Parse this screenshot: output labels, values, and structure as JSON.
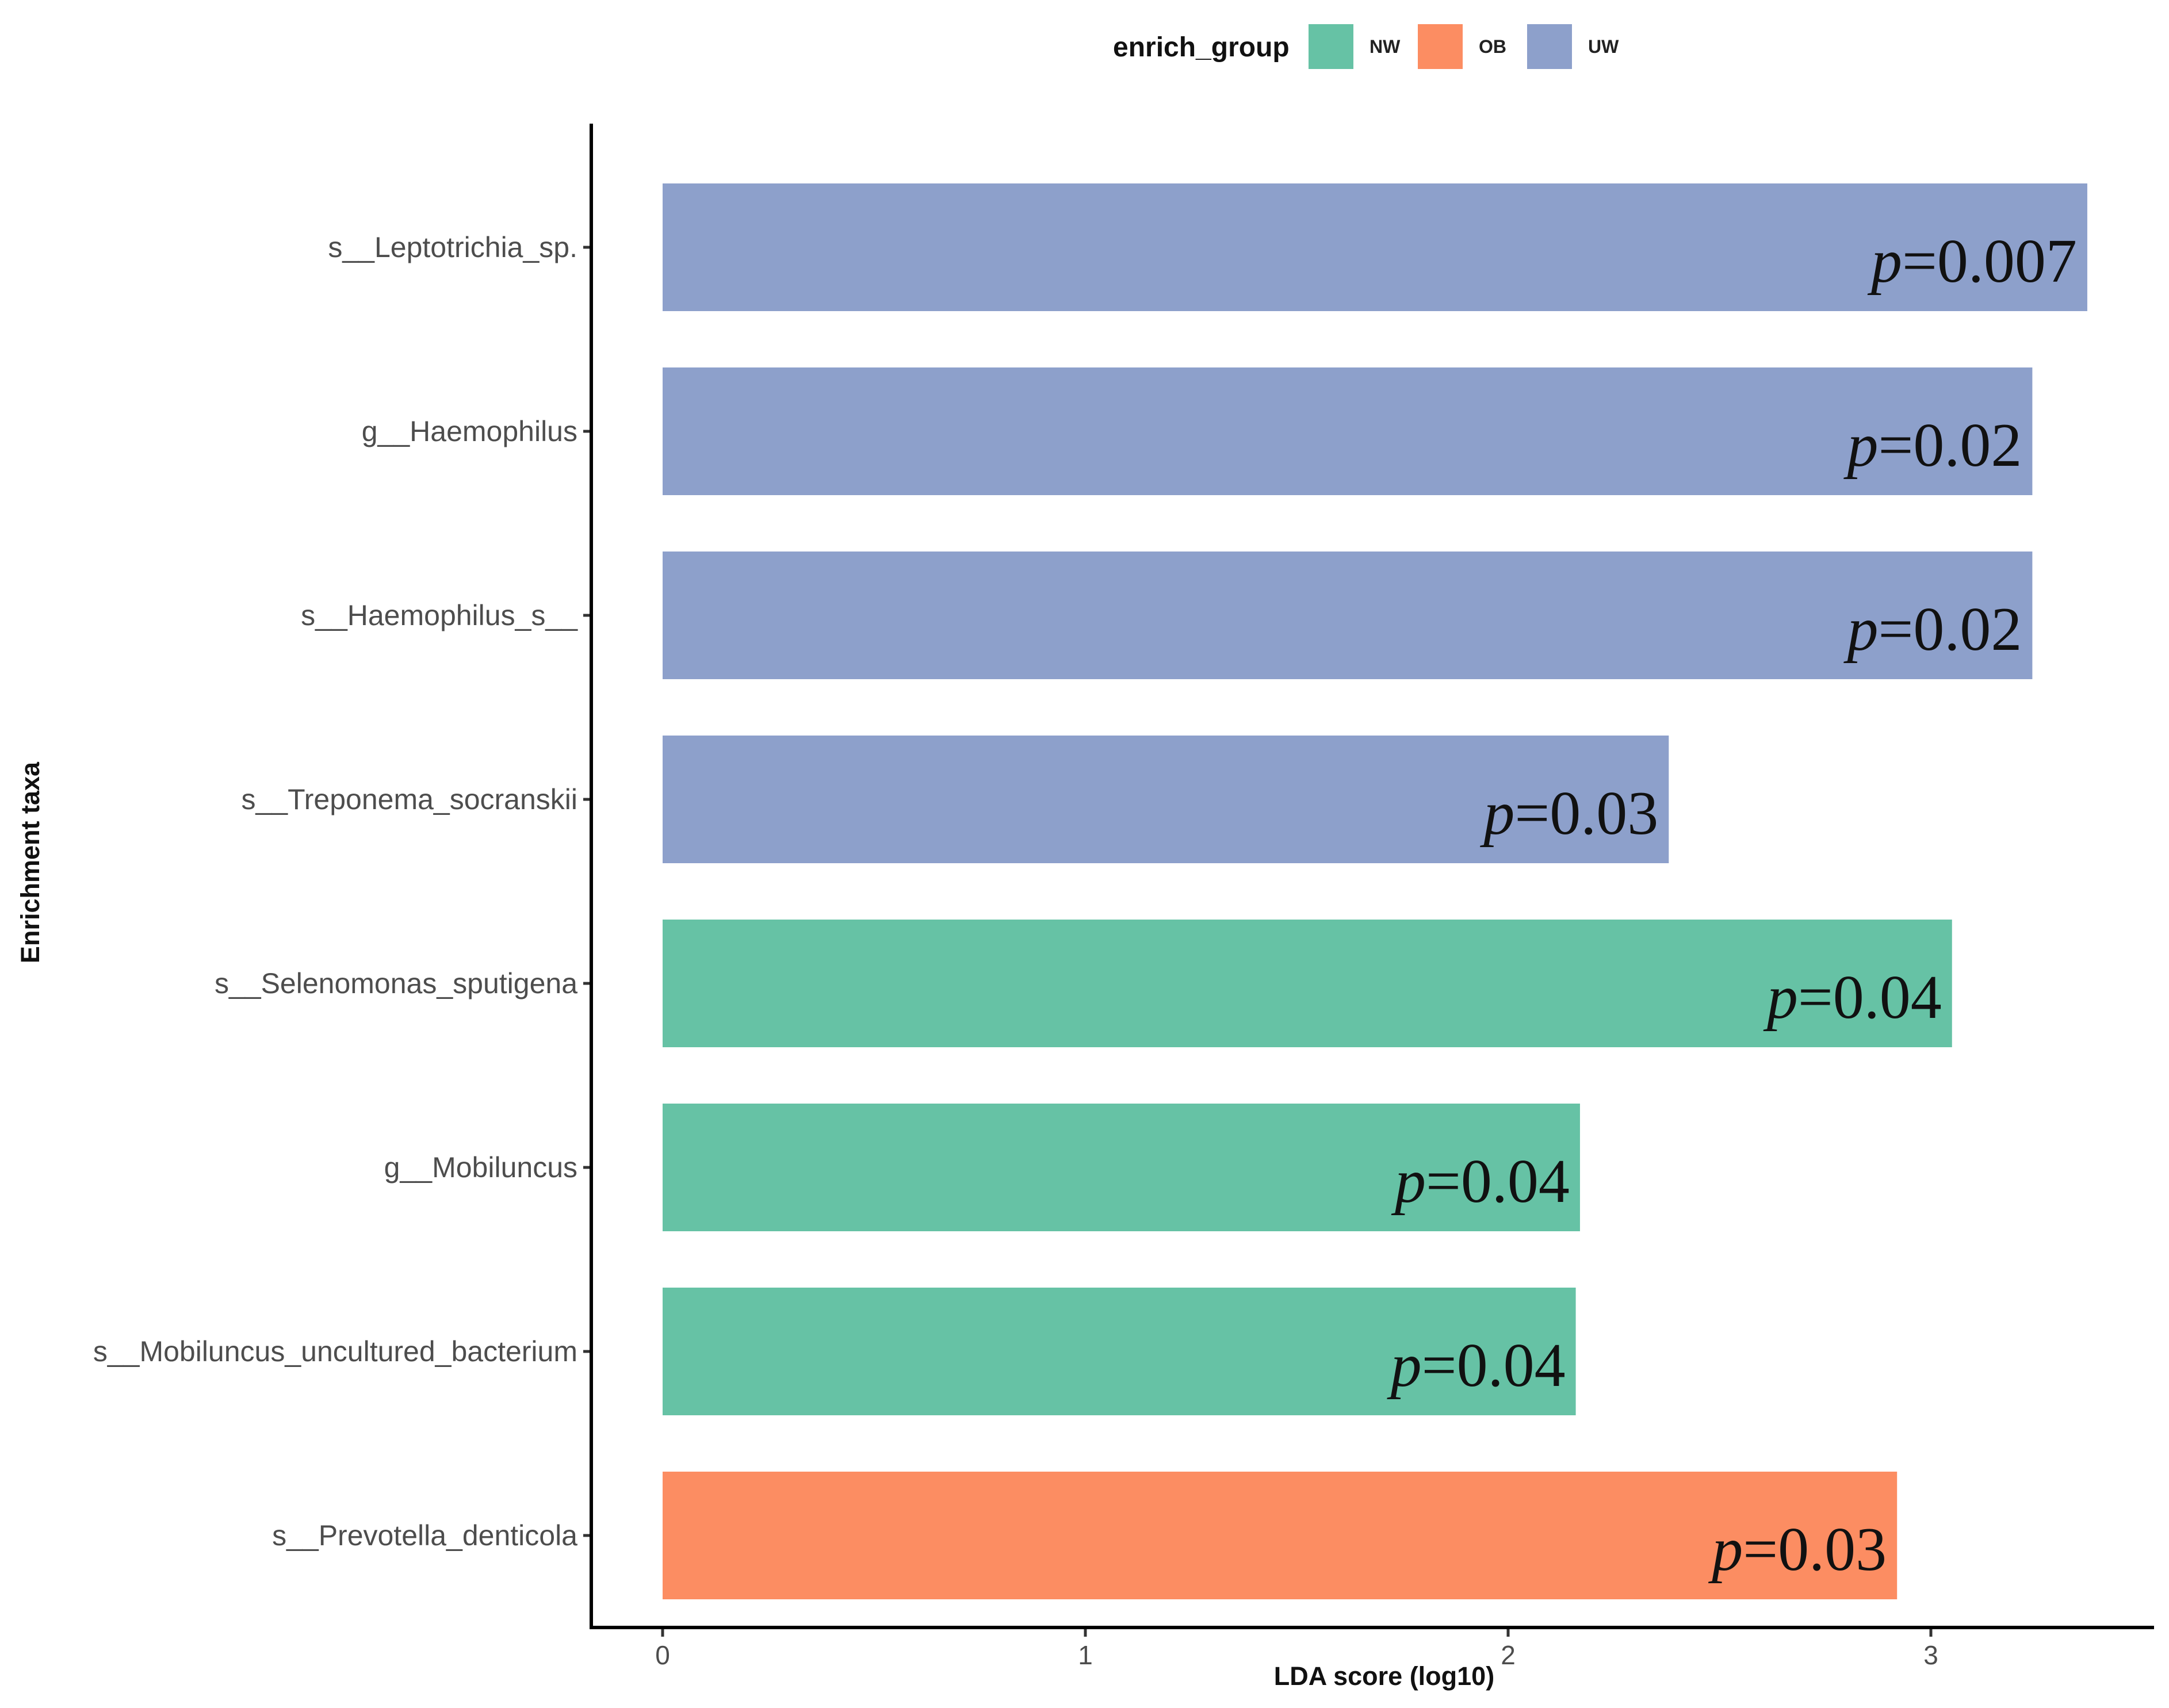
{
  "chart_data": {
    "type": "bar",
    "orientation": "horizontal",
    "xlabel": "LDA score (log10)",
    "ylabel": "Enrichment taxa",
    "xlim": [
      -0.17,
      3.53
    ],
    "xticks": [
      0,
      1,
      2,
      3
    ],
    "legend": {
      "title": "enrich_group",
      "placement": "top-center",
      "entries": [
        {
          "label": "NW",
          "color": "#66c2a5"
        },
        {
          "label": "OB",
          "color": "#fc8d62"
        },
        {
          "label": "UW",
          "color": "#8da0cb"
        }
      ]
    },
    "bars": [
      {
        "taxon": "s__Leptotrichia_sp.",
        "value": 3.37,
        "group": "UW",
        "p_label": "p=0.007",
        "p_prefix": "p",
        "p_value": "=0.007"
      },
      {
        "taxon": "g__Haemophilus",
        "value": 3.24,
        "group": "UW",
        "p_label": "p=0.02",
        "p_prefix": "p",
        "p_value": "=0.02"
      },
      {
        "taxon": "s__Haemophilus_s__",
        "value": 3.24,
        "group": "UW",
        "p_label": "p=0.02",
        "p_prefix": "p",
        "p_value": "=0.02"
      },
      {
        "taxon": "s__Treponema_socranskii",
        "value": 2.38,
        "group": "UW",
        "p_label": "p=0.03",
        "p_prefix": "p",
        "p_value": "=0.03"
      },
      {
        "taxon": "s__Selenomonas_sputigena",
        "value": 3.05,
        "group": "NW",
        "p_label": "p=0.04",
        "p_prefix": "p",
        "p_value": "=0.04"
      },
      {
        "taxon": "g__Mobiluncus",
        "value": 2.17,
        "group": "NW",
        "p_label": "p=0.04",
        "p_prefix": "p",
        "p_value": "=0.04"
      },
      {
        "taxon": "s__Mobiluncus_uncultured_bacterium",
        "value": 2.16,
        "group": "NW",
        "p_label": "p=0.04",
        "p_prefix": "p",
        "p_value": "=0.04"
      },
      {
        "taxon": "s__Prevotella_denticola",
        "value": 2.92,
        "group": "OB",
        "p_label": "p=0.03",
        "p_prefix": "p",
        "p_value": "=0.03"
      }
    ]
  }
}
